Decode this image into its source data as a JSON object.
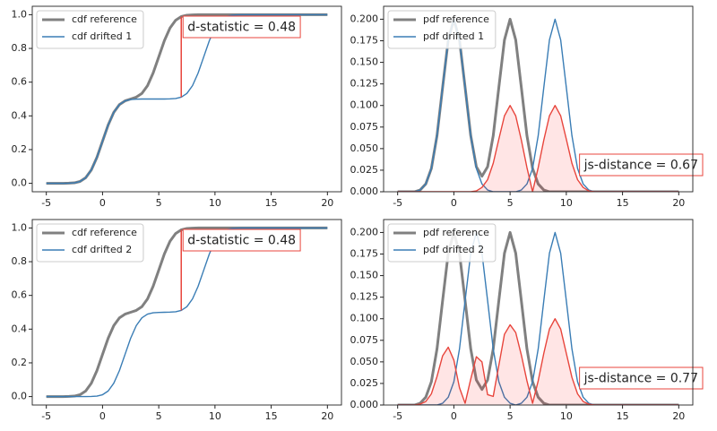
{
  "chart_data": [
    {
      "type": "line",
      "kind": "cdf",
      "x": [
        -5,
        -4.5,
        -4,
        -3.5,
        -3,
        -2.5,
        -2,
        -1.5,
        -1,
        -0.5,
        0,
        0.5,
        1,
        1.5,
        2,
        2.5,
        3,
        3.5,
        4,
        4.5,
        5,
        5.5,
        6,
        6.5,
        7,
        7.5,
        8,
        8.5,
        9,
        9.5,
        10,
        10.5,
        11,
        11.5,
        12,
        12.5,
        13,
        13.5,
        14,
        14.5,
        15,
        15.5,
        16,
        16.5,
        17,
        17.5,
        18,
        18.5,
        19,
        19.5,
        20
      ],
      "series": [
        {
          "name": "cdf reference",
          "color": "#808080",
          "width": 3,
          "values": [
            0,
            0,
            0,
            0,
            0.001,
            0.003,
            0.011,
            0.033,
            0.079,
            0.154,
            0.25,
            0.346,
            0.421,
            0.467,
            0.489,
            0.5,
            0.511,
            0.533,
            0.579,
            0.654,
            0.75,
            0.846,
            0.921,
            0.967,
            0.989,
            0.997,
            0.999,
            1,
            1,
            1,
            1,
            1,
            1,
            1,
            1,
            1,
            1,
            1,
            1,
            1,
            1,
            1,
            1,
            1,
            1,
            1,
            1,
            1,
            1,
            1,
            1
          ]
        },
        {
          "name": "cdf drifted 1",
          "color": "#3a7db5",
          "width": 1.4,
          "values": [
            0,
            0,
            0,
            0,
            0.001,
            0.003,
            0.011,
            0.033,
            0.079,
            0.154,
            0.25,
            0.346,
            0.421,
            0.467,
            0.489,
            0.497,
            0.499,
            0.5,
            0.5,
            0.5,
            0.5,
            0.5,
            0.501,
            0.503,
            0.511,
            0.533,
            0.579,
            0.654,
            0.75,
            0.846,
            0.921,
            0.967,
            0.989,
            0.997,
            0.999,
            1,
            1,
            1,
            1,
            1,
            1,
            1,
            1,
            1,
            1,
            1,
            1,
            1,
            1,
            1,
            1
          ]
        }
      ],
      "annotation": {
        "text": "d-statistic = 0.48",
        "x": 7,
        "y": [
          0.511,
          0.989
        ],
        "color": "#e8453c"
      },
      "xlim": [
        -6.25,
        21.25
      ],
      "xticks": [
        -5,
        0,
        5,
        10,
        15,
        20
      ],
      "ylim": [
        -0.05,
        1.05
      ],
      "yticks": [
        {
          "value": 0,
          "label": "0.0"
        },
        0.2,
        0.4,
        0.6,
        0.8,
        {
          "value": 1,
          "label": "1.0"
        }
      ],
      "legend": "upper left"
    },
    {
      "type": "line",
      "kind": "pdf",
      "x": [
        -5,
        -4.5,
        -4,
        -3.5,
        -3,
        -2.5,
        -2,
        -1.5,
        -1,
        -0.5,
        0,
        0.5,
        1,
        1.5,
        2,
        2.5,
        3,
        3.5,
        4,
        4.5,
        5,
        5.5,
        6,
        6.5,
        7,
        7.5,
        8,
        8.5,
        9,
        9.5,
        10,
        10.5,
        11,
        11.5,
        12,
        12.5,
        13,
        13.5,
        14,
        14.5,
        15,
        15.5,
        16,
        16.5,
        17,
        17.5,
        18,
        18.5,
        19,
        19.5,
        20
      ],
      "series": [
        {
          "name": "pdf reference",
          "color": "#808080",
          "width": 3,
          "values": [
            0,
            0,
            0,
            0,
            0.002,
            0.009,
            0.027,
            0.065,
            0.121,
            0.176,
            0.2,
            0.176,
            0.121,
            0.065,
            0.029,
            0.018,
            0.029,
            0.065,
            0.121,
            0.176,
            0.2,
            0.176,
            0.121,
            0.065,
            0.027,
            0.009,
            0.002,
            0,
            0,
            0,
            0,
            0,
            0,
            0,
            0,
            0,
            0,
            0,
            0,
            0,
            0,
            0,
            0,
            0,
            0,
            0,
            0,
            0,
            0,
            0,
            0
          ]
        },
        {
          "name": "pdf drifted 1",
          "color": "#3a7db5",
          "width": 1.4,
          "values": [
            0,
            0,
            0,
            0,
            0.002,
            0.009,
            0.027,
            0.065,
            0.121,
            0.176,
            0.2,
            0.176,
            0.121,
            0.065,
            0.027,
            0.009,
            0.002,
            0,
            0,
            0,
            0,
            0,
            0.002,
            0.009,
            0.027,
            0.065,
            0.121,
            0.176,
            0.2,
            0.176,
            0.121,
            0.065,
            0.027,
            0.009,
            0.002,
            0,
            0,
            0,
            0,
            0,
            0,
            0,
            0,
            0,
            0,
            0,
            0,
            0,
            0,
            0,
            0
          ]
        },
        {
          "color": "#e8453c",
          "width": 1.4,
          "fill": "rgba(255,0,0,0.1)",
          "values": [
            0,
            0,
            0,
            0,
            0,
            0,
            0,
            0,
            0,
            0,
            0,
            0,
            0,
            0,
            0.001,
            0.005,
            0.014,
            0.033,
            0.061,
            0.088,
            0.1,
            0.088,
            0.06,
            0.028,
            0,
            0.028,
            0.06,
            0.088,
            0.1,
            0.088,
            0.061,
            0.033,
            0.014,
            0.005,
            0.001,
            0,
            0,
            0,
            0,
            0,
            0,
            0,
            0,
            0,
            0,
            0,
            0,
            0,
            0,
            0,
            0
          ]
        }
      ],
      "annotation": {
        "text": "js-distance = 0.67",
        "color": "#e8453c"
      },
      "xlim": [
        -6.25,
        21.25
      ],
      "xticks": [
        -5,
        0,
        5,
        10,
        15,
        20
      ],
      "ylim": [
        0,
        0.215
      ],
      "yticks": [
        {
          "value": 0,
          "label": "0.000"
        },
        {
          "value": 0.025,
          "label": "0.025"
        },
        {
          "value": 0.05,
          "label": "0.050"
        },
        {
          "value": 0.075,
          "label": "0.075"
        },
        {
          "value": 0.1,
          "label": "0.100"
        },
        {
          "value": 0.125,
          "label": "0.125"
        },
        {
          "value": 0.15,
          "label": "0.150"
        },
        {
          "value": 0.175,
          "label": "0.175"
        },
        {
          "value": 0.2,
          "label": "0.200"
        }
      ],
      "legend": "upper left"
    },
    {
      "type": "line",
      "kind": "cdf",
      "x": [
        -5,
        -4.5,
        -4,
        -3.5,
        -3,
        -2.5,
        -2,
        -1.5,
        -1,
        -0.5,
        0,
        0.5,
        1,
        1.5,
        2,
        2.5,
        3,
        3.5,
        4,
        4.5,
        5,
        5.5,
        6,
        6.5,
        7,
        7.5,
        8,
        8.5,
        9,
        9.5,
        10,
        10.5,
        11,
        11.5,
        12,
        12.5,
        13,
        13.5,
        14,
        14.5,
        15,
        15.5,
        16,
        16.5,
        17,
        17.5,
        18,
        18.5,
        19,
        19.5,
        20
      ],
      "series": [
        {
          "name": "cdf reference",
          "color": "#808080",
          "width": 3,
          "values": [
            0,
            0,
            0,
            0,
            0.001,
            0.003,
            0.011,
            0.033,
            0.079,
            0.154,
            0.25,
            0.346,
            0.421,
            0.467,
            0.489,
            0.5,
            0.511,
            0.533,
            0.579,
            0.654,
            0.75,
            0.846,
            0.921,
            0.967,
            0.989,
            0.997,
            0.999,
            1,
            1,
            1,
            1,
            1,
            1,
            1,
            1,
            1,
            1,
            1,
            1,
            1,
            1,
            1,
            1,
            1,
            1,
            1,
            1,
            1,
            1,
            1,
            1
          ]
        },
        {
          "name": "cdf drifted 2",
          "color": "#3a7db5",
          "width": 1.4,
          "values": [
            0,
            0,
            0,
            0,
            0,
            0,
            0,
            0,
            0.001,
            0.003,
            0.011,
            0.033,
            0.079,
            0.154,
            0.25,
            0.346,
            0.421,
            0.467,
            0.489,
            0.497,
            0.499,
            0.5,
            0.501,
            0.503,
            0.511,
            0.533,
            0.579,
            0.654,
            0.75,
            0.846,
            0.921,
            0.967,
            0.989,
            0.997,
            0.999,
            1,
            1,
            1,
            1,
            1,
            1,
            1,
            1,
            1,
            1,
            1,
            1,
            1,
            1,
            1,
            1
          ]
        }
      ],
      "annotation": {
        "text": "d-statistic = 0.48",
        "x": 7,
        "y": [
          0.511,
          0.989
        ],
        "color": "#e8453c"
      },
      "xlim": [
        -6.25,
        21.25
      ],
      "xticks": [
        -5,
        0,
        5,
        10,
        15,
        20
      ],
      "ylim": [
        -0.05,
        1.05
      ],
      "yticks": [
        {
          "value": 0,
          "label": "0.0"
        },
        0.2,
        0.4,
        0.6,
        0.8,
        {
          "value": 1,
          "label": "1.0"
        }
      ],
      "legend": "upper left"
    },
    {
      "type": "line",
      "kind": "pdf",
      "x": [
        -5,
        -4.5,
        -4,
        -3.5,
        -3,
        -2.5,
        -2,
        -1.5,
        -1,
        -0.5,
        0,
        0.5,
        1,
        1.5,
        2,
        2.5,
        3,
        3.5,
        4,
        4.5,
        5,
        5.5,
        6,
        6.5,
        7,
        7.5,
        8,
        8.5,
        9,
        9.5,
        10,
        10.5,
        11,
        11.5,
        12,
        12.5,
        13,
        13.5,
        14,
        14.5,
        15,
        15.5,
        16,
        16.5,
        17,
        17.5,
        18,
        18.5,
        19,
        19.5,
        20
      ],
      "series": [
        {
          "name": "pdf reference",
          "color": "#808080",
          "width": 3,
          "values": [
            0,
            0,
            0,
            0,
            0.002,
            0.009,
            0.027,
            0.065,
            0.121,
            0.176,
            0.2,
            0.176,
            0.121,
            0.065,
            0.029,
            0.018,
            0.029,
            0.065,
            0.121,
            0.176,
            0.2,
            0.176,
            0.121,
            0.065,
            0.027,
            0.009,
            0.002,
            0,
            0,
            0,
            0,
            0,
            0,
            0,
            0,
            0,
            0,
            0,
            0,
            0,
            0,
            0,
            0,
            0,
            0,
            0,
            0,
            0,
            0,
            0,
            0
          ]
        },
        {
          "name": "pdf drifted 2",
          "color": "#3a7db5",
          "width": 1.4,
          "values": [
            0,
            0,
            0,
            0,
            0,
            0,
            0,
            0,
            0.002,
            0.009,
            0.027,
            0.065,
            0.121,
            0.176,
            0.2,
            0.176,
            0.121,
            0.065,
            0.027,
            0.009,
            0.002,
            0,
            0.002,
            0.009,
            0.027,
            0.065,
            0.121,
            0.176,
            0.2,
            0.176,
            0.121,
            0.065,
            0.027,
            0.009,
            0.002,
            0,
            0,
            0,
            0,
            0,
            0,
            0,
            0,
            0,
            0,
            0,
            0,
            0,
            0,
            0,
            0
          ]
        },
        {
          "color": "#e8453c",
          "width": 1.4,
          "fill": "rgba(255,0,0,0.1)",
          "values": [
            0,
            0,
            0,
            0,
            0.001,
            0.004,
            0.013,
            0.033,
            0.057,
            0.067,
            0.052,
            0.02,
            0.002,
            0.03,
            0.056,
            0.05,
            0.012,
            0.01,
            0.046,
            0.082,
            0.093,
            0.084,
            0.058,
            0.028,
            0.002,
            0.028,
            0.06,
            0.088,
            0.1,
            0.088,
            0.06,
            0.032,
            0.013,
            0.004,
            0.001,
            0,
            0,
            0,
            0,
            0,
            0,
            0,
            0,
            0,
            0,
            0,
            0,
            0,
            0,
            0,
            0
          ]
        }
      ],
      "annotation": {
        "text": "js-distance = 0.77",
        "color": "#e8453c"
      },
      "xlim": [
        -6.25,
        21.25
      ],
      "xticks": [
        -5,
        0,
        5,
        10,
        15,
        20
      ],
      "ylim": [
        0,
        0.215
      ],
      "yticks": [
        {
          "value": 0,
          "label": "0.000"
        },
        {
          "value": 0.025,
          "label": "0.025"
        },
        {
          "value": 0.05,
          "label": "0.050"
        },
        {
          "value": 0.075,
          "label": "0.075"
        },
        {
          "value": 0.1,
          "label": "0.100"
        },
        {
          "value": 0.125,
          "label": "0.125"
        },
        {
          "value": 0.15,
          "label": "0.150"
        },
        {
          "value": 0.175,
          "label": "0.175"
        },
        {
          "value": 0.2,
          "label": "0.200"
        }
      ],
      "legend": "upper left"
    }
  ]
}
